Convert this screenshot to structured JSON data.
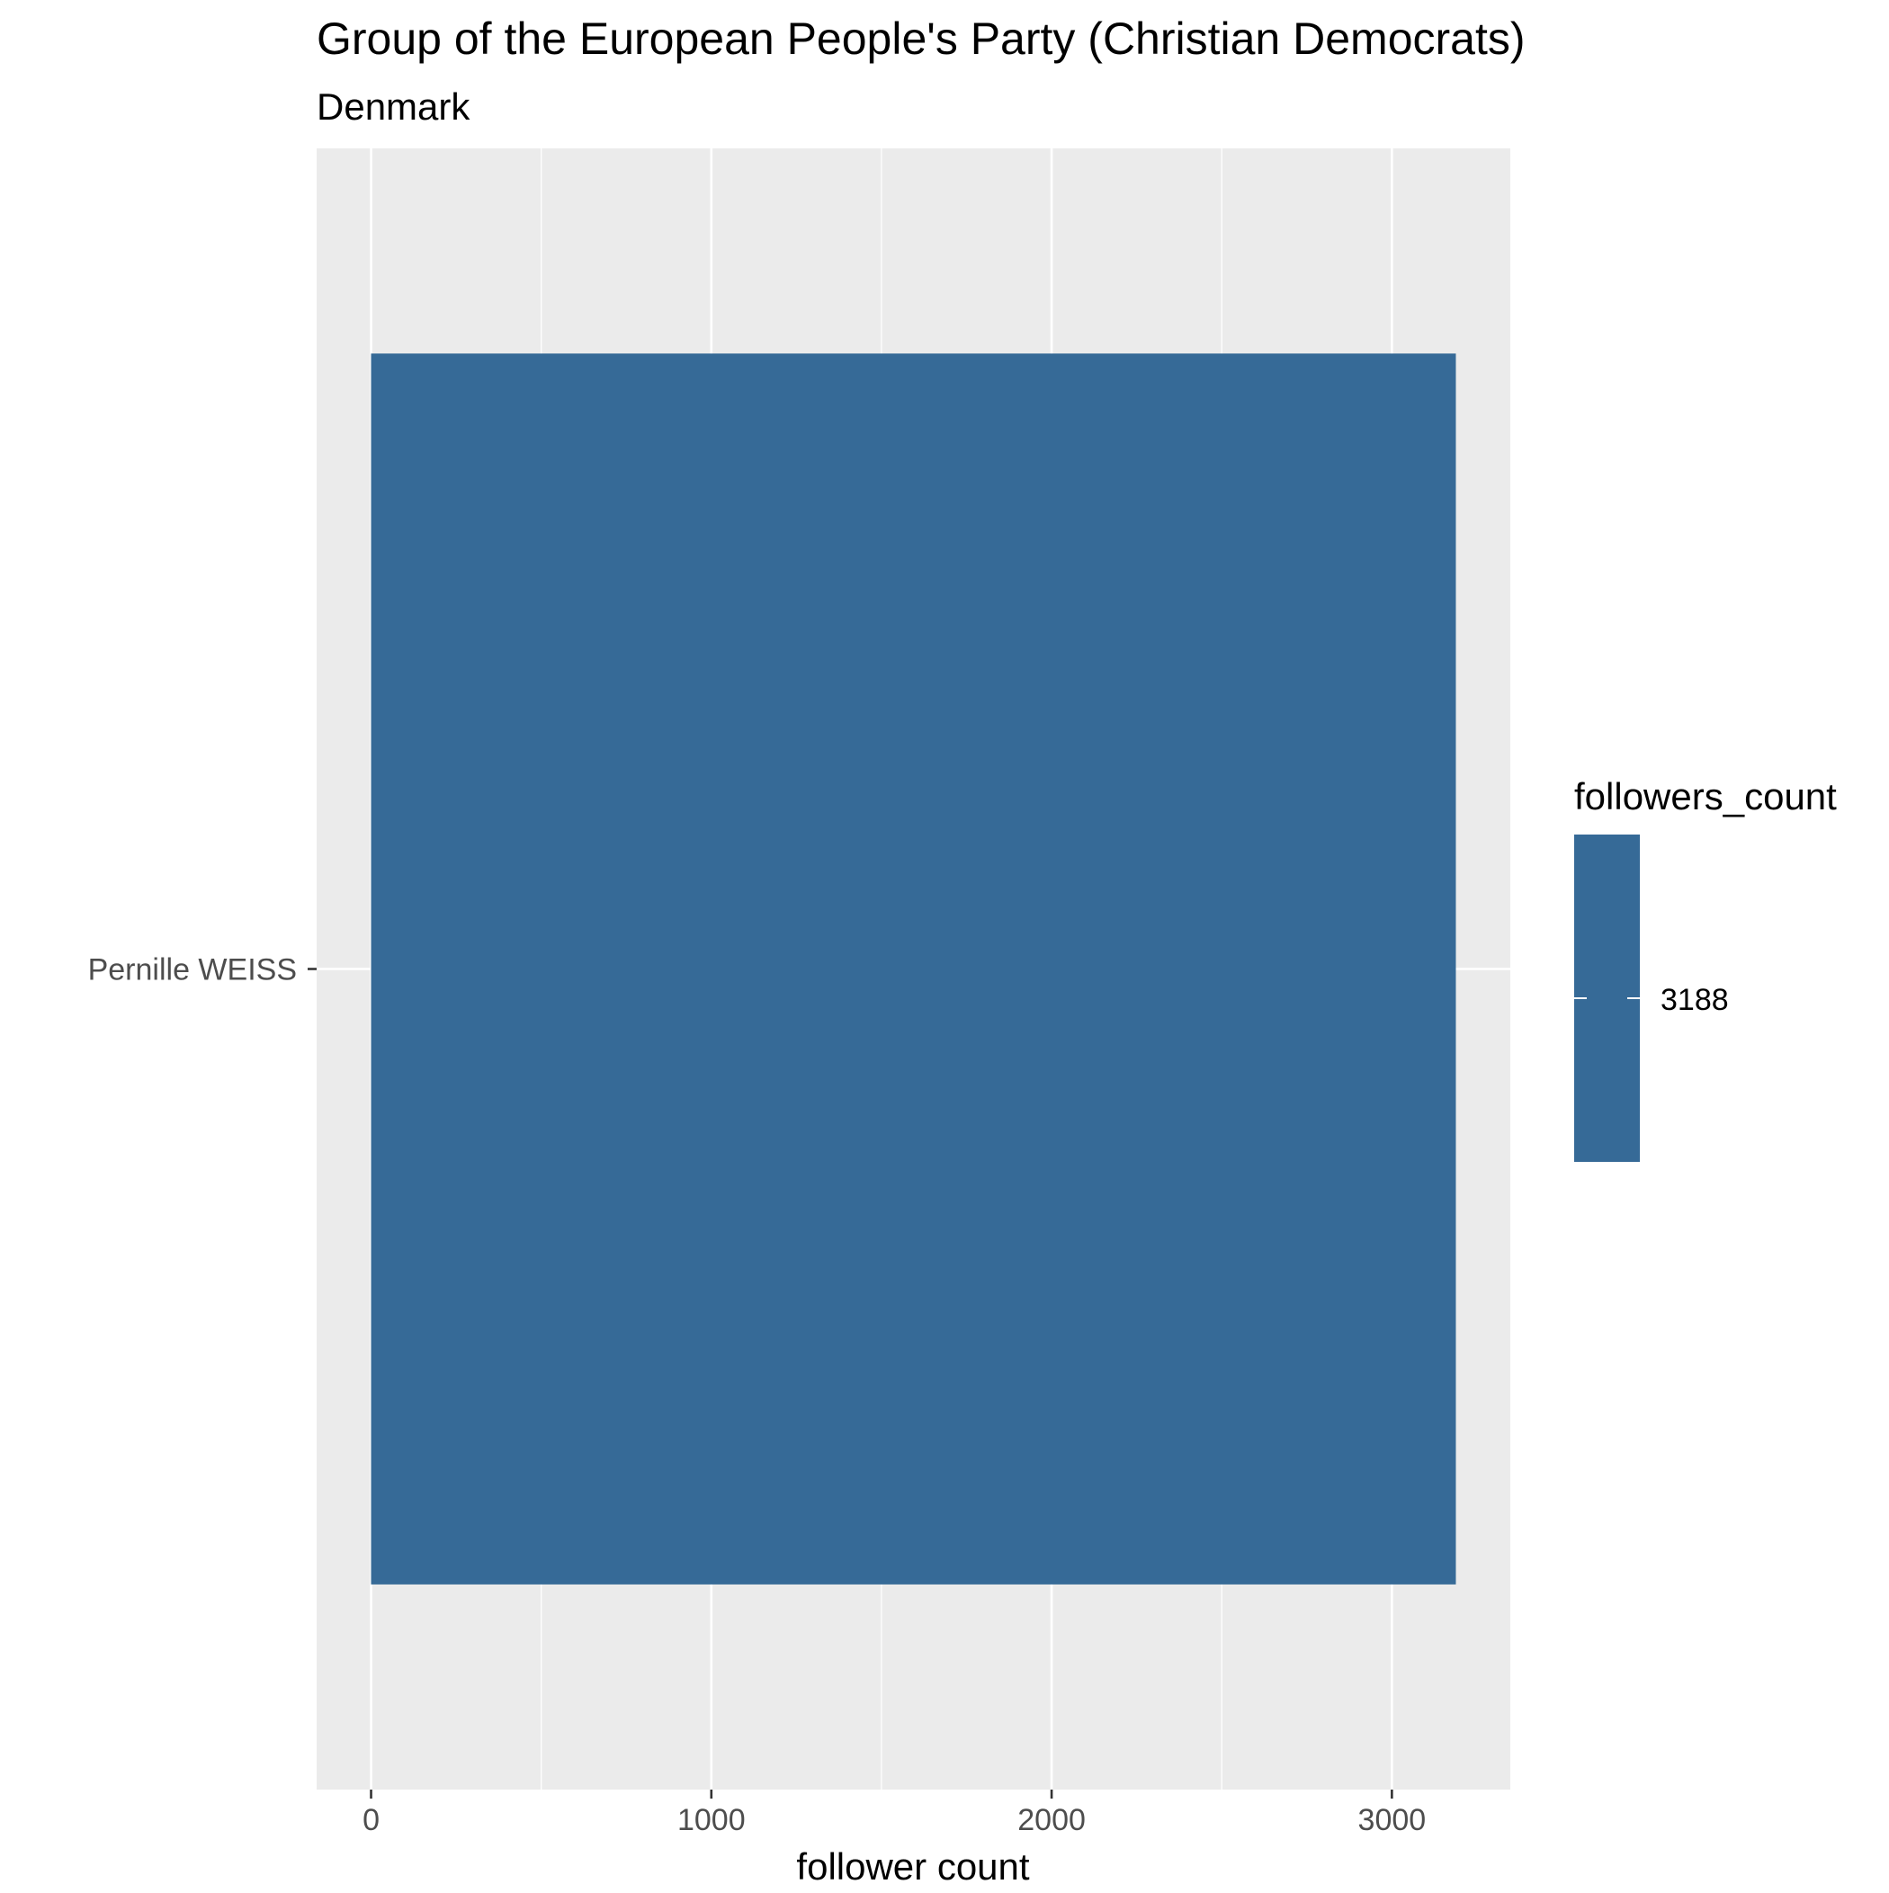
{
  "chart_data": {
    "type": "bar",
    "orientation": "horizontal",
    "title": "Group of the European People's Party (Christian Democrats)",
    "subtitle": "Denmark",
    "xlabel": "follower count",
    "ylabel": "",
    "categories": [
      "Pernille WEISS"
    ],
    "values": [
      3188
    ],
    "xlim": [
      -160,
      3348
    ],
    "x_ticks": [
      0,
      1000,
      2000,
      3000
    ],
    "x_minor_ticks": [
      500,
      1500,
      2500
    ],
    "legend": {
      "title": "followers_count",
      "value_label": "3188",
      "placement": "right"
    },
    "grid": true,
    "colors": {
      "bar": "#366a97",
      "panel": "#ebebeb",
      "grid": "#ffffff",
      "axis_text": "#4d4d4d",
      "text": "#000000"
    }
  }
}
